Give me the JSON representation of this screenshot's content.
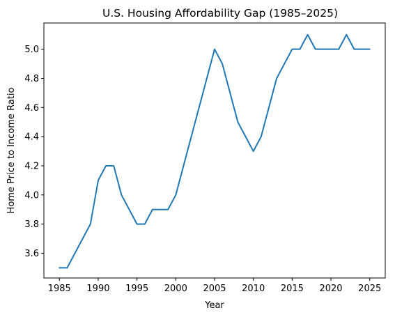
{
  "chart_data": {
    "type": "line",
    "title": "U.S. Housing Affordability Gap (1985–2025)",
    "xlabel": "Year",
    "ylabel": "Home Price to Income Ratio",
    "xlim": [
      1983,
      2027
    ],
    "ylim": [
      3.43,
      5.18
    ],
    "xticks": [
      1985,
      1990,
      1995,
      2000,
      2005,
      2010,
      2015,
      2020,
      2025
    ],
    "yticks": [
      3.6,
      3.8,
      4.0,
      4.2,
      4.4,
      4.6,
      4.8,
      5.0
    ],
    "grid": false,
    "color": "#1f77b4",
    "series": [
      {
        "x": [
          1985,
          1986,
          1987,
          1988,
          1989,
          1990,
          1991,
          1992,
          1993,
          1994,
          1995,
          1996,
          1997,
          1998,
          1999,
          2000,
          2001,
          2002,
          2003,
          2004,
          2005,
          2006,
          2007,
          2008,
          2009,
          2010,
          2011,
          2012,
          2013,
          2014,
          2015,
          2016,
          2017,
          2018,
          2019,
          2020,
          2021,
          2022,
          2023,
          2024,
          2025
        ],
        "values": [
          3.5,
          3.5,
          3.6,
          3.7,
          3.8,
          4.1,
          4.2,
          4.2,
          4.0,
          3.9,
          3.8,
          3.8,
          3.9,
          3.9,
          3.9,
          4.0,
          4.2,
          4.4,
          4.6,
          4.8,
          5.0,
          4.9,
          4.7,
          4.5,
          4.4,
          4.3,
          4.4,
          4.6,
          4.8,
          4.9,
          5.0,
          5.0,
          5.1,
          5.0,
          5.0,
          5.0,
          5.0,
          5.1,
          5.0,
          5.0,
          5.0
        ]
      }
    ]
  }
}
